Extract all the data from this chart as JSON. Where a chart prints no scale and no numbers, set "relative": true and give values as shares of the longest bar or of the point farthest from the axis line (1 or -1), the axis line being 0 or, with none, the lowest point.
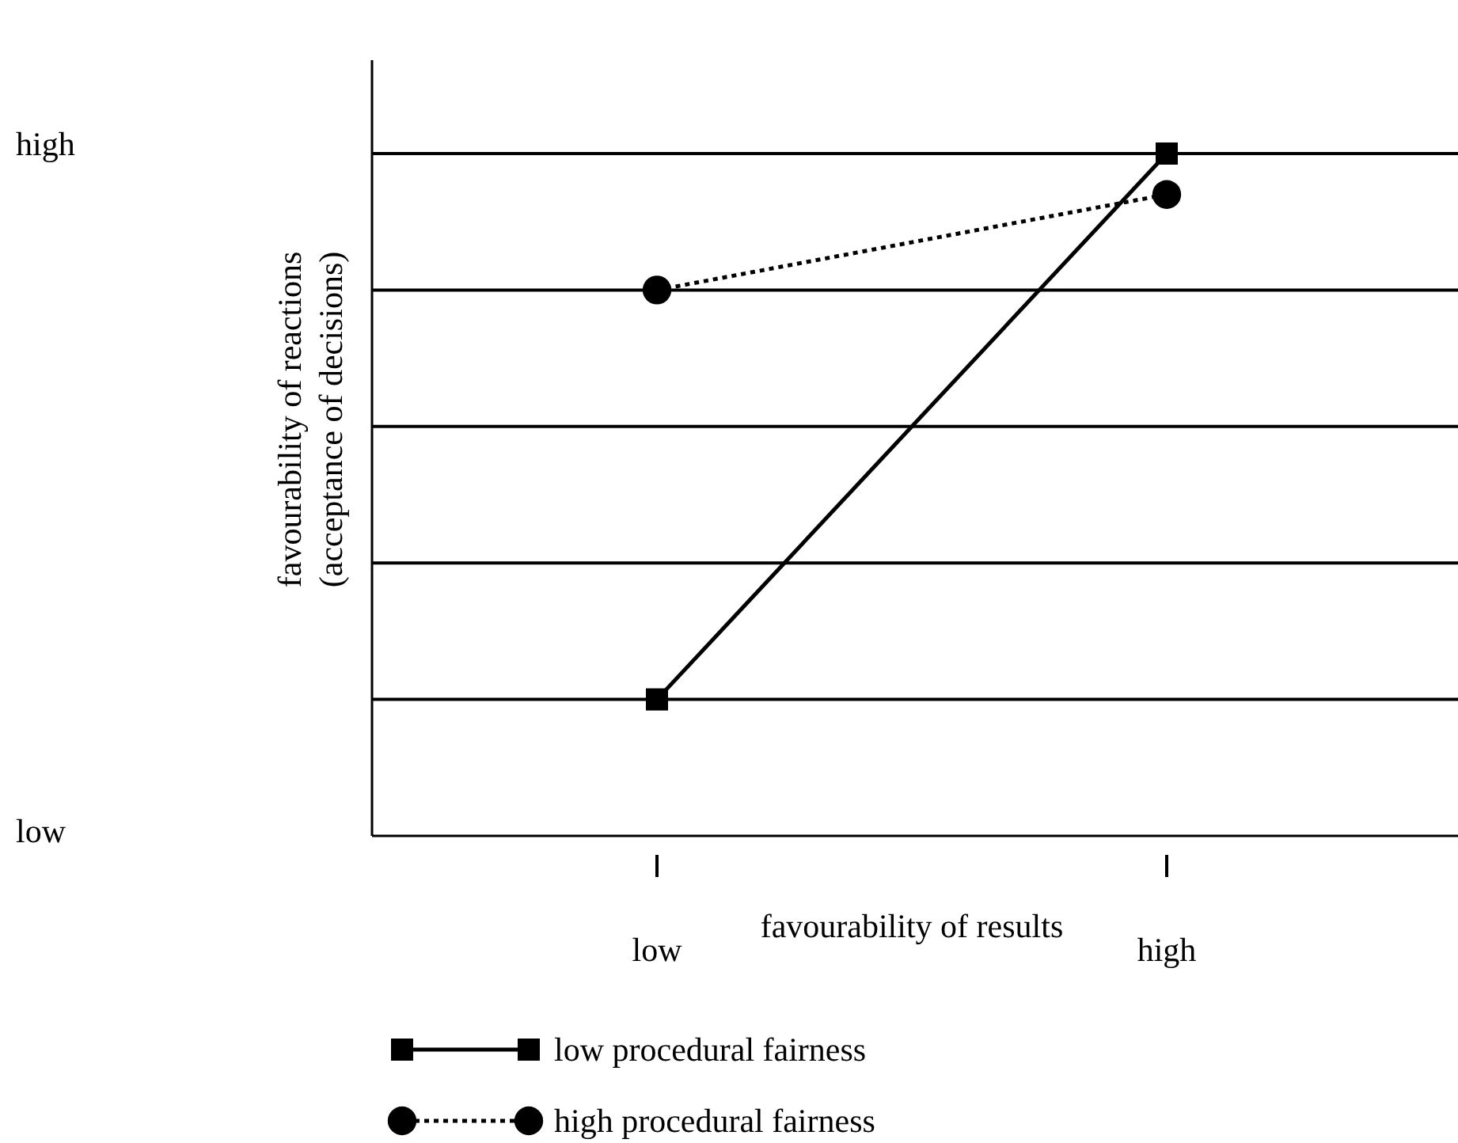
{
  "chart_data": {
    "type": "line",
    "relative": true,
    "xlabel": "favourability of results",
    "ylabel": "favourability of reactions\n(acceptance of decisions)",
    "categories": [
      "low",
      "high"
    ],
    "grid": "y",
    "legend": "bottom left",
    "annotations": [
      "high",
      "low"
    ],
    "series": [
      {
        "name": "low procedural fairness",
        "color": "#000000",
        "marker": "square",
        "line_style": "solid",
        "values": [
          0.2,
          1
        ]
      },
      {
        "name": "high procedural fairness",
        "color": "#000000",
        "marker": "circle",
        "line_style": "dotted",
        "values": [
          0.8,
          0.94
        ]
      }
    ]
  }
}
